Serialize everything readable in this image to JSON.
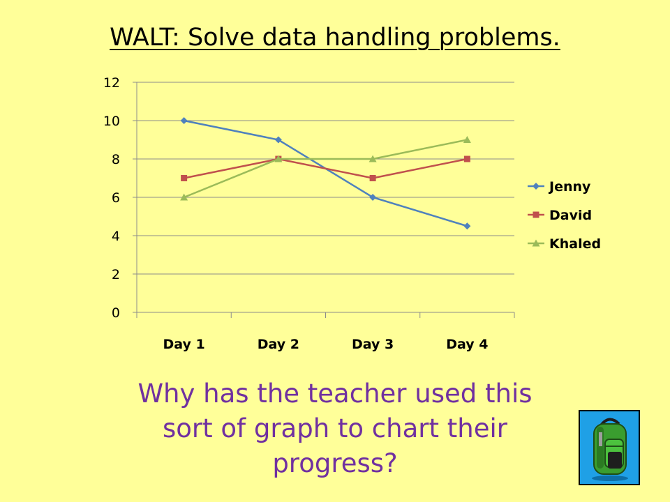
{
  "slide": {
    "title": "WALT: Solve data handling problems.",
    "question_lines": [
      "Why has the teacher used this",
      "sort of graph to chart their",
      "progress?"
    ],
    "picture_icon": "backpack-icon",
    "colors": {
      "background": "#ffff99",
      "question": "#7030a0",
      "tile": "#1fa0e6"
    }
  },
  "chart_data": {
    "type": "line",
    "categories": [
      "Day 1",
      "Day 2",
      "Day 3",
      "Day 4"
    ],
    "series": [
      {
        "name": "Jenny",
        "values": [
          10,
          9,
          6,
          4.5
        ],
        "color": "#4f81bd",
        "marker": "diamond"
      },
      {
        "name": "David",
        "values": [
          7,
          8,
          7,
          8
        ],
        "color": "#c0504d",
        "marker": "square"
      },
      {
        "name": "Khaled",
        "values": [
          6,
          8,
          8,
          9
        ],
        "color": "#9bbb59",
        "marker": "triangle"
      }
    ],
    "yticks": [
      0,
      2,
      4,
      6,
      8,
      10,
      12
    ],
    "ylim": [
      0,
      12
    ],
    "grid": true,
    "legend": "right"
  }
}
